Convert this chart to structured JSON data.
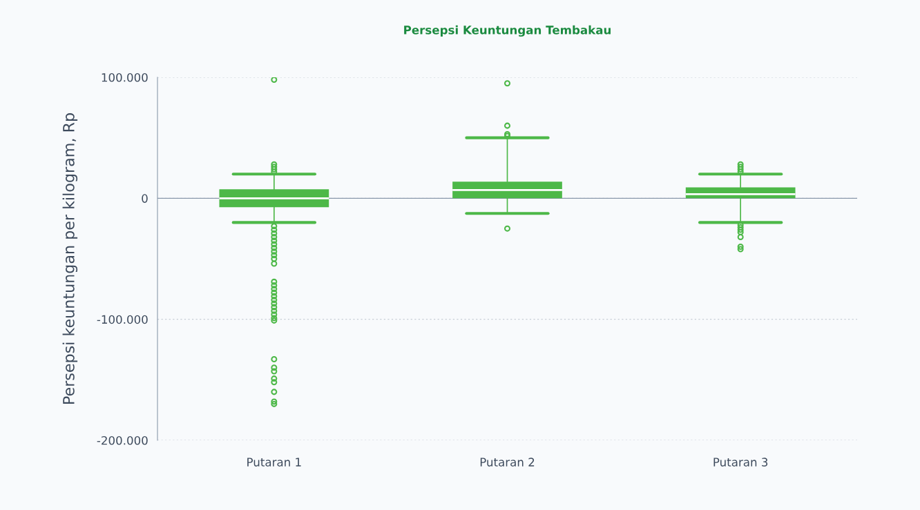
{
  "chart_data": {
    "type": "box",
    "title": "Persepsi Keuntungan Tembakau",
    "ylabel": "Persepsi keuntungan per kilogram, Rp",
    "categories": [
      "Putaran 1",
      "Putaran 2",
      "Putaran 3"
    ],
    "series": [
      {
        "color": "#4db848",
        "boxes": [
          {
            "low": -20000,
            "q1": -7400,
            "median": 0,
            "q3": 7400,
            "high": 20000,
            "outliers": [
              98000,
              28000,
              26000,
              24000,
              22000,
              -23000,
              -26000,
              -29000,
              -32000,
              -35000,
              -38000,
              -41000,
              -44000,
              -47000,
              -50000,
              -54000,
              -69000,
              -72000,
              -75000,
              -78000,
              -81000,
              -84000,
              -87000,
              -90000,
              -93000,
              -96000,
              -99000,
              -101000,
              -133000,
              -140000,
              -143000,
              -149000,
              -152000,
              -160000,
              -168000,
              -170000
            ]
          },
          {
            "low": -12500,
            "q1": 0,
            "median": 6800,
            "q3": 13700,
            "high": 50000,
            "outliers": [
              95000,
              60000,
              53000,
              51500,
              -25000
            ]
          },
          {
            "low": -20000,
            "q1": 0,
            "median": 3400,
            "q3": 9000,
            "high": 20000,
            "outliers": [
              28000,
              26000,
              24000,
              22000,
              -22000,
              -24000,
              -26000,
              -28000,
              -32000,
              -40000,
              -42000
            ]
          }
        ]
      }
    ],
    "ylim": [
      -200000,
      100000
    ],
    "yticks": [
      {
        "value": -200000,
        "label": "-200.000"
      },
      {
        "value": -100000,
        "label": "-100.000"
      },
      {
        "value": 0,
        "label": "0"
      },
      {
        "value": 100000,
        "label": "100.000"
      }
    ],
    "ref_lines": [
      {
        "axis": "y",
        "value": 0,
        "color": "#8a99ab"
      }
    ],
    "grid": "y"
  }
}
